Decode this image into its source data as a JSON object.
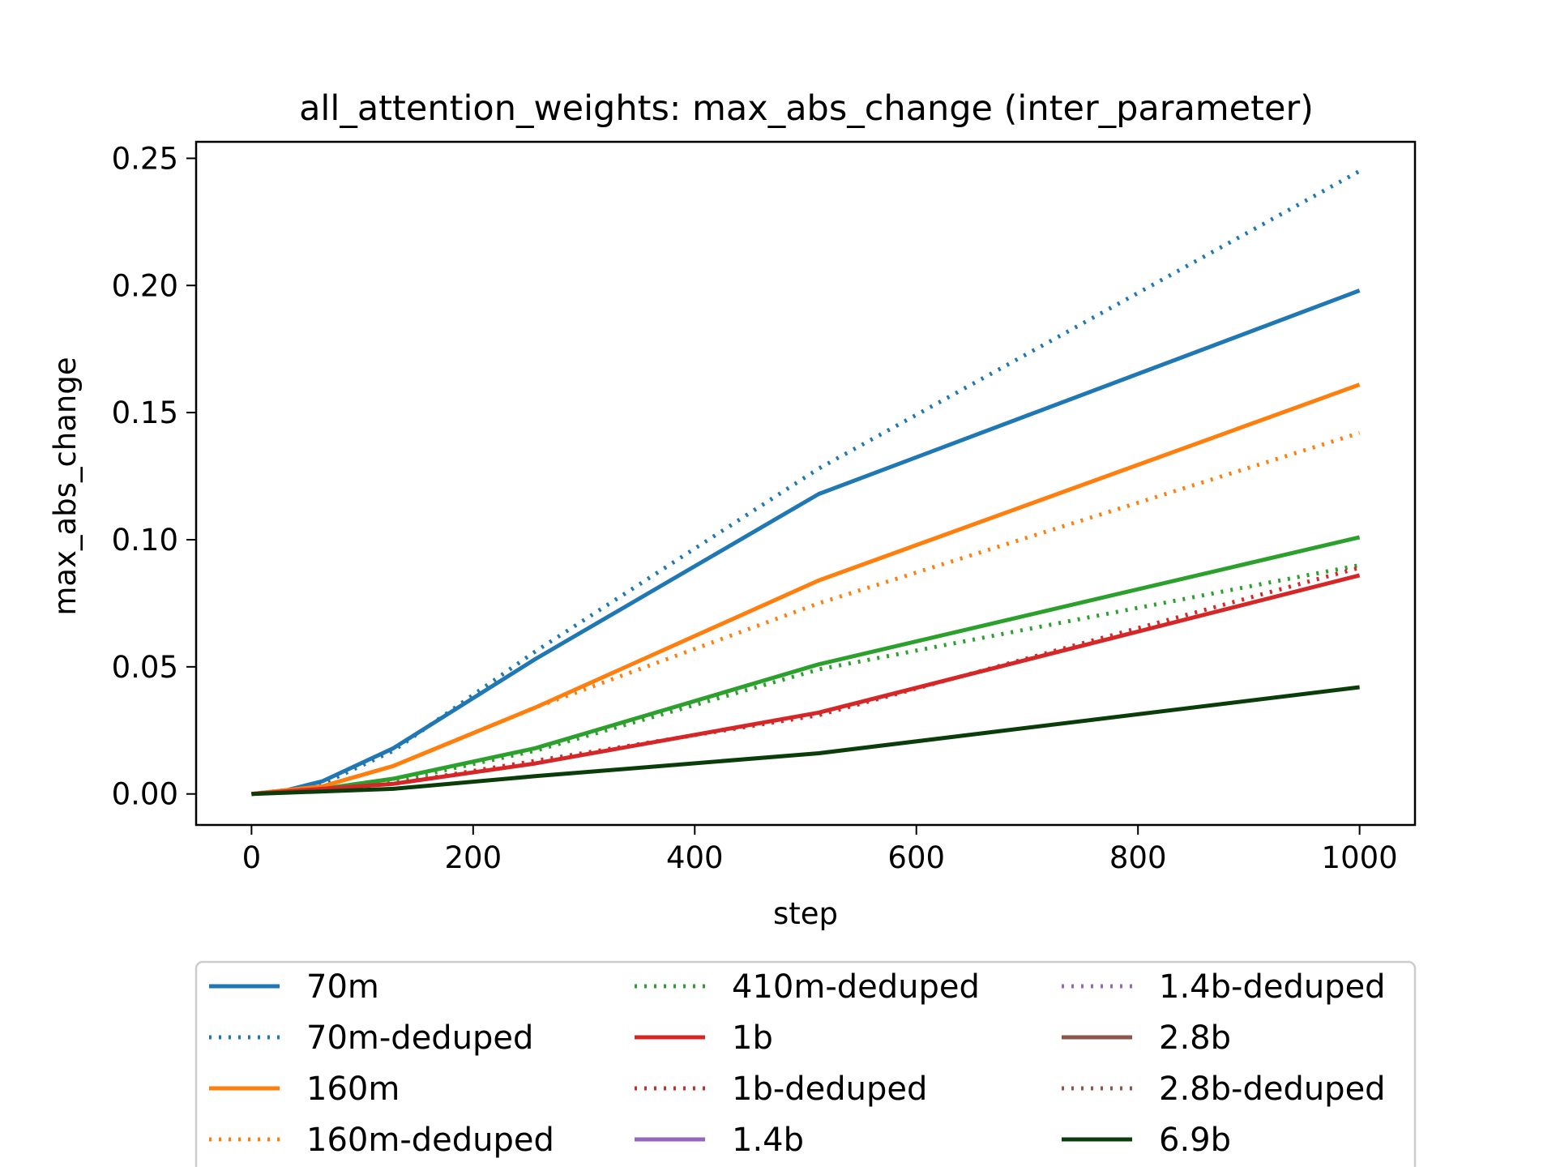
{
  "chart_data": {
    "type": "line",
    "title": "all_attention_weights: max_abs_change (inter_parameter)",
    "xlabel": "step",
    "ylabel": "max_abs_change",
    "xlim": [
      -50,
      1050
    ],
    "ylim": [
      -0.0122,
      0.2565
    ],
    "xticks": [
      0,
      200,
      400,
      600,
      800,
      1000
    ],
    "xtick_labels": [
      "0",
      "200",
      "400",
      "600",
      "800",
      "1000"
    ],
    "yticks": [
      0.0,
      0.05,
      0.1,
      0.15,
      0.2,
      0.25
    ],
    "ytick_labels": [
      "0.00",
      "0.05",
      "0.10",
      "0.15",
      "0.20",
      "0.25"
    ],
    "grid": false,
    "legend_placement": "below-plot, 3 columns",
    "series": [
      {
        "name": "70m",
        "color": "#1f77b4",
        "style": "solid",
        "x": [
          0,
          32,
          64,
          128,
          256,
          512,
          1000
        ],
        "y": [
          0.0,
          0.0015,
          0.005,
          0.018,
          0.053,
          0.118,
          0.198
        ]
      },
      {
        "name": "70m-deduped",
        "color": "#1f77b4",
        "style": "dotted",
        "x": [
          0,
          32,
          64,
          128,
          256,
          512,
          1000
        ],
        "y": [
          0.0,
          0.001,
          0.004,
          0.017,
          0.056,
          0.128,
          0.245
        ]
      },
      {
        "name": "160m",
        "color": "#ff7f0e",
        "style": "solid",
        "x": [
          0,
          64,
          128,
          256,
          512,
          1000
        ],
        "y": [
          0.0,
          0.003,
          0.011,
          0.034,
          0.084,
          0.161
        ]
      },
      {
        "name": "160m-deduped",
        "color": "#ff7f0e",
        "style": "dotted",
        "x": [
          0,
          64,
          128,
          256,
          512,
          1000
        ],
        "y": [
          0.0,
          0.003,
          0.011,
          0.034,
          0.075,
          0.142
        ]
      },
      {
        "name": "410m-deduped",
        "color": "#2ca02c",
        "style": "dotted",
        "x": [
          0,
          64,
          128,
          256,
          512,
          1000
        ],
        "y": [
          0.0,
          0.002,
          0.005,
          0.017,
          0.049,
          0.09
        ]
      },
      {
        "name": "1b",
        "color": "#d62728",
        "style": "solid",
        "x": [
          0,
          64,
          128,
          256,
          512,
          1000
        ],
        "y": [
          0.0,
          0.002,
          0.004,
          0.012,
          0.032,
          0.086
        ]
      },
      {
        "name": "1b-deduped",
        "color": "#d62728",
        "style": "dotted",
        "x": [
          0,
          64,
          128,
          256,
          512,
          1000
        ],
        "y": [
          0.0,
          0.002,
          0.004,
          0.013,
          0.031,
          0.089
        ]
      },
      {
        "name": "1.4b",
        "color": "#9467bd",
        "style": "solid",
        "x": [],
        "y": []
      },
      {
        "name": "1.4b-deduped",
        "color": "#9467bd",
        "style": "dotted",
        "x": [],
        "y": []
      },
      {
        "name": "2.8b",
        "color": "#8c564b",
        "style": "solid",
        "x": [],
        "y": []
      },
      {
        "name": "2.8b-deduped",
        "color": "#8c564b",
        "style": "dotted",
        "x": [],
        "y": []
      },
      {
        "name": "6.9b",
        "color": "#0b3d0b",
        "style": "solid",
        "x": [
          0,
          64,
          128,
          256,
          512,
          1000
        ],
        "y": [
          0.0,
          0.001,
          0.002,
          0.007,
          0.016,
          0.042
        ]
      }
    ],
    "extra_series": [
      {
        "color": "#2ca02c",
        "style": "solid",
        "x": [
          0,
          64,
          128,
          256,
          512,
          1000
        ],
        "y": [
          0.0,
          0.002,
          0.006,
          0.018,
          0.051,
          0.101
        ]
      }
    ]
  }
}
